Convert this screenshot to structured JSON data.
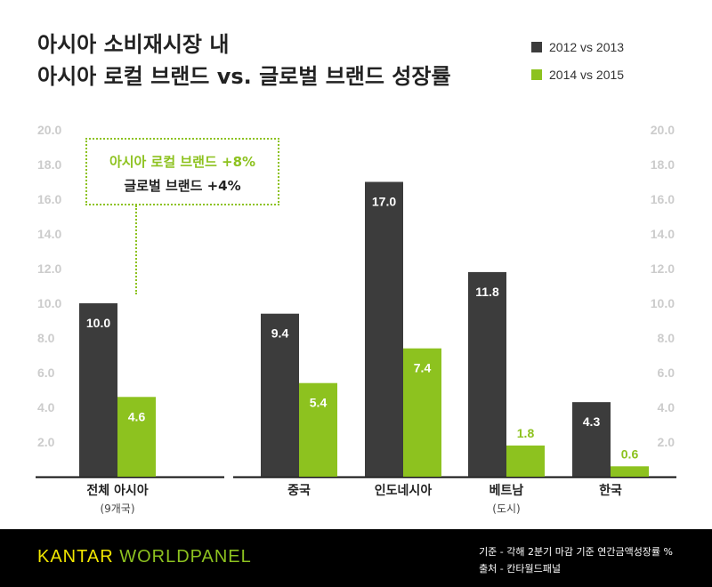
{
  "title": {
    "line1": "아시아 소비재시장 내",
    "line2": "아시아 로컬 브랜드 vs. 글로벌 브랜드 성장률"
  },
  "callout": {
    "local": "아시아 로컬 브랜드 +8%",
    "global": "글로벌 브랜드 +4%"
  },
  "colors": {
    "series1": "#3c3c3c",
    "series2": "#8dc21f",
    "axis": "#cccccc",
    "footer_bg": "#000000",
    "brand_yellow": "#f1e600",
    "brand_green": "#8dc21f"
  },
  "chart_data": {
    "type": "bar",
    "categories": [
      "전체 아시아",
      "중국",
      "인도네시아",
      "베트남",
      "한국"
    ],
    "category_sublabels": [
      "(9개국)",
      "",
      "",
      "(도시)",
      ""
    ],
    "series": [
      {
        "name": "2012 vs 2013",
        "values": [
          10.0,
          9.4,
          17.0,
          11.8,
          4.3
        ]
      },
      {
        "name": "2014 vs 2015",
        "values": [
          4.6,
          5.4,
          7.4,
          1.8,
          0.6
        ]
      }
    ],
    "yticks": [
      "2.0",
      "4.0",
      "6.0",
      "8.0",
      "10.0",
      "12.0",
      "14.0",
      "16.0",
      "18.0",
      "20.0"
    ],
    "ylim": [
      0,
      20
    ],
    "legend_position": "top-right",
    "grid": false
  },
  "footer": {
    "brand_part1": "KANTAR ",
    "brand_part2": "WORLDPANEL",
    "note_line1": "기준 - 각해 2분기 마감 기준 연간금액성장률 %",
    "note_line2": "출처 - 칸타월드패널"
  }
}
